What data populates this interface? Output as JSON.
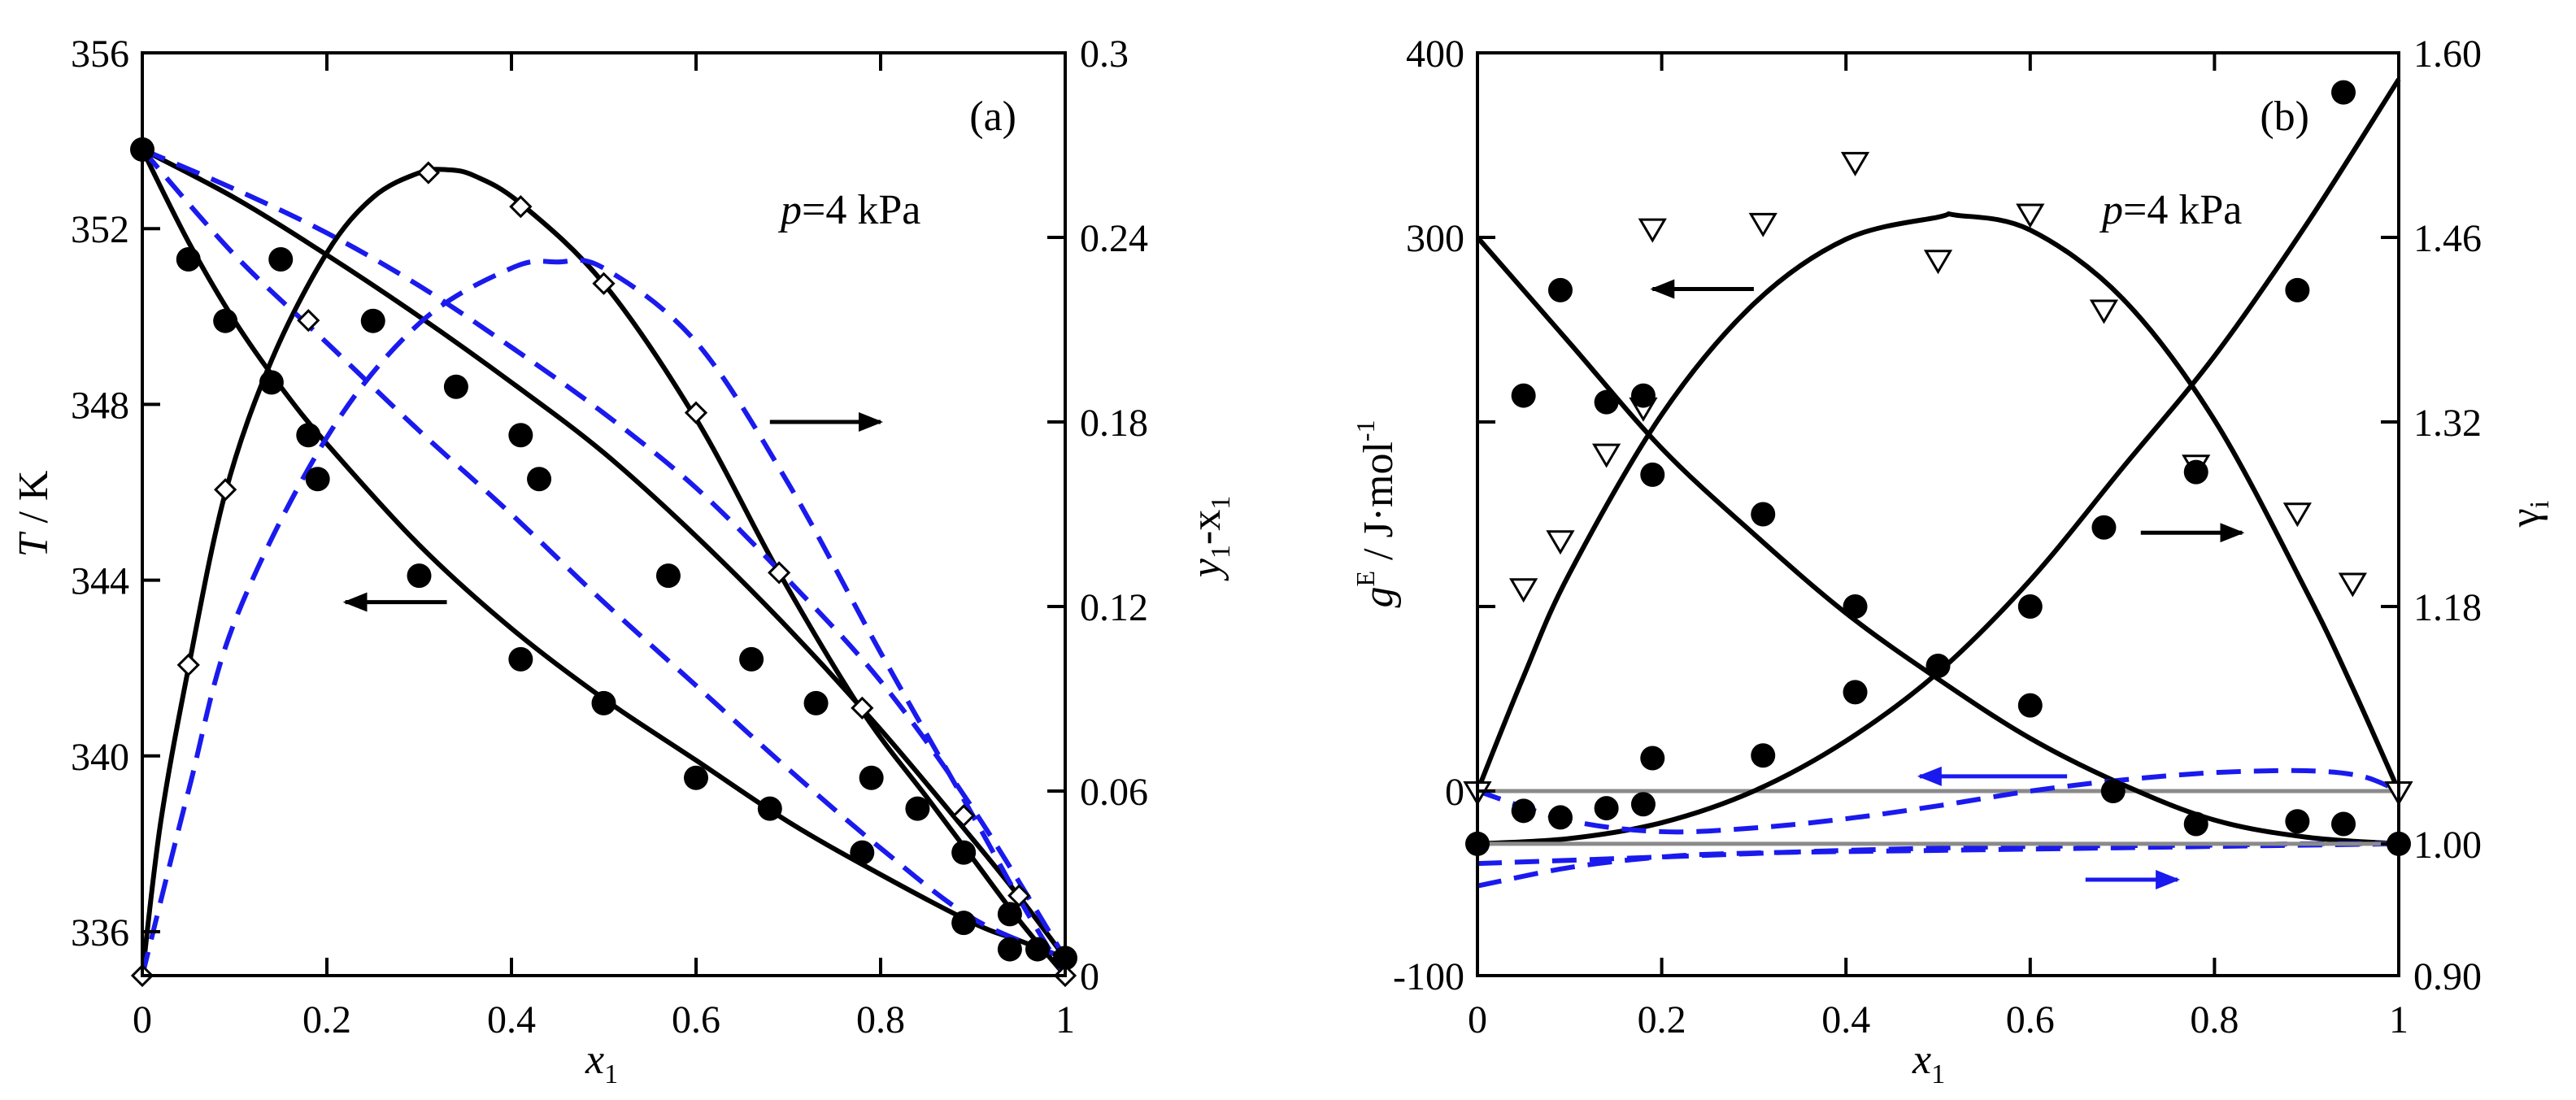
{
  "colors": {
    "black": "#000000",
    "blue": "#1a1aee",
    "gray": "#8a8a8a"
  },
  "chart_data": [
    {
      "type": "line",
      "panel": "(a)",
      "annotation": "p=4 kPa",
      "annotation_p": "p",
      "annotation_rest": "=4 kPa",
      "xlabel": "x",
      "xlabel_sub": "1",
      "ylabel_left": "T / K",
      "ylabel_left_T": "T",
      "ylabel_left_rest": " / K",
      "ylabel_right_y": "y",
      "ylabel_right_sub1": "1",
      "ylabel_right_mid": "-x",
      "ylabel_right_sub2": "1",
      "xlim": [
        0,
        1
      ],
      "ylim_left": [
        335,
        356
      ],
      "ylim_right": [
        0,
        0.3
      ],
      "x_ticks": [
        "0",
        "0.2",
        "0.4",
        "0.6",
        "0.8",
        "1"
      ],
      "x_tick_values": [
        0,
        0.2,
        0.4,
        0.6,
        0.8,
        1
      ],
      "y_left_ticks": [
        "336",
        "340",
        "344",
        "348",
        "352",
        "356"
      ],
      "y_left_tick_values": [
        336,
        340,
        344,
        348,
        352,
        356
      ],
      "y_right_ticks": [
        "0",
        "0.06",
        "0.12",
        "0.18",
        "0.24",
        "0.3"
      ],
      "y_right_tick_values": [
        0,
        0.06,
        0.12,
        0.18,
        0.24,
        0.3
      ],
      "series": [
        {
          "name": "T-x experimental",
          "style": "filled-circle",
          "axis": "left",
          "x": [
            0,
            0.05,
            0.09,
            0.14,
            0.18,
            0.19,
            0.3,
            0.41,
            0.5,
            0.6,
            0.68,
            0.78,
            0.89,
            0.94,
            0.97,
            1.0
          ],
          "y": [
            353.8,
            351.3,
            349.9,
            348.5,
            347.3,
            346.3,
            344.1,
            342.2,
            341.2,
            339.5,
            338.8,
            337.8,
            336.2,
            335.6,
            335.6,
            335.4
          ]
        },
        {
          "name": "T-y experimental",
          "style": "filled-circle",
          "axis": "left",
          "x": [
            0.15,
            0.25,
            0.34,
            0.41,
            0.43,
            0.57,
            0.66,
            0.73,
            0.79,
            0.84,
            0.89,
            0.94
          ],
          "y": [
            351.3,
            349.9,
            348.4,
            347.3,
            346.3,
            344.1,
            342.2,
            341.2,
            339.5,
            338.8,
            337.8,
            336.4
          ]
        },
        {
          "name": "y1-x1 experimental",
          "style": "open-diamond",
          "axis": "right",
          "x": [
            0,
            0.05,
            0.09,
            0.18,
            0.31,
            0.41,
            0.5,
            0.6,
            0.69,
            0.78,
            0.89,
            0.95,
            1.0
          ],
          "y": [
            0.0,
            0.101,
            0.158,
            0.213,
            0.261,
            0.25,
            0.225,
            0.183,
            0.131,
            0.087,
            0.052,
            0.026,
            0.0
          ]
        },
        {
          "name": "T-x correlated",
          "style": "solid-black",
          "axis": "left",
          "x": [
            0,
            0.05,
            0.1,
            0.15,
            0.2,
            0.3,
            0.4,
            0.5,
            0.6,
            0.7,
            0.8,
            0.9,
            0.95,
            1.0
          ],
          "y": [
            353.8,
            351.7,
            349.9,
            348.4,
            347.1,
            344.8,
            342.9,
            341.3,
            339.9,
            338.5,
            337.3,
            336.2,
            335.8,
            335.4
          ]
        },
        {
          "name": "T-y correlated",
          "style": "solid-black",
          "axis": "left",
          "x": [
            0,
            0.1,
            0.2,
            0.3,
            0.4,
            0.5,
            0.6,
            0.7,
            0.8,
            0.9,
            0.95,
            1.0
          ],
          "y": [
            353.8,
            352.7,
            351.4,
            350.0,
            348.5,
            346.9,
            345.0,
            342.9,
            340.6,
            338.1,
            336.8,
            335.4
          ]
        },
        {
          "name": "y1-x1 correlated",
          "style": "solid-black",
          "axis": "right",
          "x": [
            0,
            0.02,
            0.05,
            0.09,
            0.14,
            0.2,
            0.25,
            0.3,
            0.33,
            0.36,
            0.41,
            0.5,
            0.6,
            0.69,
            0.78,
            0.85,
            0.9,
            0.95,
            1.0
          ],
          "y": [
            0.0,
            0.05,
            0.1,
            0.157,
            0.2,
            0.235,
            0.253,
            0.261,
            0.262,
            0.26,
            0.251,
            0.225,
            0.181,
            0.131,
            0.086,
            0.058,
            0.038,
            0.018,
            0.0
          ]
        },
        {
          "name": "T-x predicted",
          "style": "dashed-blue",
          "axis": "left",
          "x": [
            0,
            0.1,
            0.2,
            0.3,
            0.4,
            0.5,
            0.6,
            0.7,
            0.8,
            0.9,
            1.0
          ],
          "y": [
            353.8,
            351.4,
            349.4,
            347.4,
            345.5,
            343.5,
            341.6,
            339.7,
            337.9,
            336.3,
            335.4
          ]
        },
        {
          "name": "T-y predicted",
          "style": "dashed-blue",
          "axis": "left",
          "x": [
            0,
            0.1,
            0.2,
            0.3,
            0.4,
            0.5,
            0.6,
            0.7,
            0.8,
            0.9,
            1.0
          ],
          "y": [
            353.8,
            352.9,
            351.9,
            350.7,
            349.3,
            347.8,
            346.1,
            344.0,
            341.7,
            338.8,
            335.4
          ]
        },
        {
          "name": "y1-x1 predicted",
          "style": "dashed-blue",
          "axis": "right",
          "x": [
            0,
            0.05,
            0.1,
            0.2,
            0.3,
            0.4,
            0.45,
            0.5,
            0.6,
            0.7,
            0.8,
            0.9,
            0.95,
            1.0
          ],
          "y": [
            0.0,
            0.06,
            0.115,
            0.175,
            0.212,
            0.23,
            0.232,
            0.23,
            0.206,
            0.16,
            0.105,
            0.052,
            0.025,
            0.0
          ]
        }
      ],
      "arrows": [
        {
          "name": "arrow-to-left-axis",
          "direction": "left",
          "x": [
            0.33,
            0.22
          ],
          "y_left": 343.5
        },
        {
          "name": "arrow-to-right-axis",
          "direction": "right",
          "x": [
            0.68,
            0.8
          ],
          "y_right": 0.18
        }
      ]
    },
    {
      "type": "line",
      "panel": "(b)",
      "annotation": "p=4 kPa",
      "annotation_p": "p",
      "annotation_rest": "=4 kPa",
      "xlabel": "x",
      "xlabel_sub": "1",
      "ylabel_left_g": "g",
      "ylabel_left_sup": "E",
      "ylabel_left_rest": " / J·mol",
      "ylabel_left_exp": "-1",
      "ylabel_right_gamma": "γ",
      "ylabel_right_sub": "i",
      "xlim": [
        0,
        1
      ],
      "ylim_left": [
        -100,
        400
      ],
      "ylim_right": [
        0.9,
        1.6
      ],
      "x_ticks": [
        "0",
        "0.2",
        "0.4",
        "0.6",
        "0.8",
        "1"
      ],
      "x_tick_values": [
        0,
        0.2,
        0.4,
        0.6,
        0.8,
        1
      ],
      "y_left_ticks": [
        "-100",
        "0",
        "300",
        "400"
      ],
      "y_left_tick_values": [
        -100,
        0,
        300,
        400
      ],
      "y_left_minor_ticks": [
        100,
        200
      ],
      "y_right_ticks": [
        "0.90",
        "1.00",
        "1.18",
        "1.32",
        "1.46",
        "1.60"
      ],
      "y_right_tick_values": [
        0.9,
        1.0,
        1.18,
        1.32,
        1.46,
        1.6
      ],
      "series": [
        {
          "name": "gE experimental",
          "style": "open-triangle-down",
          "axis": "left",
          "x": [
            0,
            0.05,
            0.09,
            0.14,
            0.18,
            0.19,
            0.31,
            0.41,
            0.5,
            0.6,
            0.68,
            0.78,
            0.89,
            0.95,
            1.0
          ],
          "y": [
            0,
            110,
            136,
            183,
            208,
            305,
            308,
            341,
            288,
            313,
            261,
            177,
            151,
            113,
            0
          ]
        },
        {
          "name": "gamma1 experimental",
          "style": "filled-circle",
          "axis": "right",
          "x": [
            0,
            0.05,
            0.09,
            0.14,
            0.18,
            0.19,
            0.31,
            0.41,
            0.5,
            0.6,
            0.68,
            0.78,
            0.89,
            0.94
          ],
          "y": [
            1.0,
            1.025,
            1.02,
            1.027,
            1.03,
            1.065,
            1.067,
            1.115,
            1.135,
            1.18,
            1.24,
            1.282,
            1.42,
            1.57
          ]
        },
        {
          "name": "gamma2 experimental",
          "style": "filled-circle",
          "axis": "right",
          "x": [
            0.05,
            0.09,
            0.14,
            0.18,
            0.19,
            0.31,
            0.41,
            0.6,
            0.69,
            0.78,
            0.89,
            0.94,
            1.0
          ],
          "y": [
            1.34,
            1.42,
            1.335,
            1.34,
            1.28,
            1.25,
            1.18,
            1.105,
            1.04,
            1.015,
            1.017,
            1.015,
            1.0
          ]
        },
        {
          "name": "gE correlated",
          "style": "solid-black",
          "axis": "left",
          "x": [
            0,
            0.05,
            0.1,
            0.2,
            0.3,
            0.4,
            0.5,
            0.52,
            0.6,
            0.7,
            0.8,
            0.9,
            0.95,
            1.0
          ],
          "y": [
            0,
            62,
            118,
            204,
            264,
            299,
            311,
            312,
            304,
            267,
            201,
            108,
            56,
            0
          ]
        },
        {
          "name": "gamma1 correlated",
          "style": "solid-black",
          "axis": "right",
          "x": [
            0,
            0.1,
            0.2,
            0.3,
            0.4,
            0.5,
            0.6,
            0.7,
            0.8,
            0.9,
            1.0
          ],
          "y": [
            1.0,
            1.004,
            1.016,
            1.04,
            1.078,
            1.13,
            1.2,
            1.285,
            1.37,
            1.47,
            1.58
          ]
        },
        {
          "name": "gamma2 correlated",
          "style": "solid-black",
          "axis": "right",
          "x": [
            0,
            0.1,
            0.2,
            0.3,
            0.4,
            0.5,
            0.6,
            0.7,
            0.8,
            0.9,
            1.0
          ],
          "y": [
            1.46,
            1.38,
            1.3,
            1.235,
            1.175,
            1.125,
            1.08,
            1.045,
            1.018,
            1.005,
            1.0
          ]
        },
        {
          "name": "gE predicted",
          "style": "dashed-blue",
          "axis": "left",
          "x": [
            0,
            0.1,
            0.2,
            0.3,
            0.4,
            0.5,
            0.6,
            0.7,
            0.8,
            0.9,
            0.96,
            1.0
          ],
          "y": [
            0,
            -16,
            -22,
            -20,
            -15,
            -8,
            0,
            6,
            10,
            11,
            8,
            0
          ]
        },
        {
          "name": "gamma1 predicted",
          "style": "dashed-blue",
          "axis": "right",
          "x": [
            0,
            0.1,
            0.2,
            0.3,
            0.5,
            0.7,
            0.9,
            1.0
          ],
          "y": [
            0.968,
            0.982,
            0.99,
            0.993,
            0.995,
            0.997,
            0.999,
            1.0
          ]
        },
        {
          "name": "gamma2 predicted",
          "style": "dashed-blue",
          "axis": "right",
          "x": [
            0,
            0.2,
            0.4,
            0.6,
            0.8,
            0.9,
            1.0
          ],
          "y": [
            0.985,
            0.99,
            0.995,
            0.998,
            0.999,
            1.0,
            1.0
          ]
        },
        {
          "name": "reference lines",
          "style": "solid-gray",
          "axis": "right",
          "x": [
            0,
            1
          ],
          "y": [
            1.0,
            1.0
          ]
        }
      ],
      "reference_line_left": {
        "y": 0,
        "x": [
          0,
          1
        ]
      },
      "arrows": [
        {
          "name": "black-arrow-left",
          "direction": "left",
          "color": "black",
          "x": [
            0.3,
            0.19
          ],
          "y_left": 272
        },
        {
          "name": "black-arrow-right",
          "direction": "right",
          "color": "black",
          "x": [
            0.72,
            0.83
          ],
          "y_left": 140
        },
        {
          "name": "blue-arrow-left",
          "direction": "left",
          "color": "blue",
          "x": [
            0.64,
            0.48
          ],
          "y_left": 8
        },
        {
          "name": "blue-arrow-right",
          "direction": "right",
          "color": "blue",
          "x": [
            0.66,
            0.76
          ],
          "y_left": -48
        }
      ]
    }
  ]
}
